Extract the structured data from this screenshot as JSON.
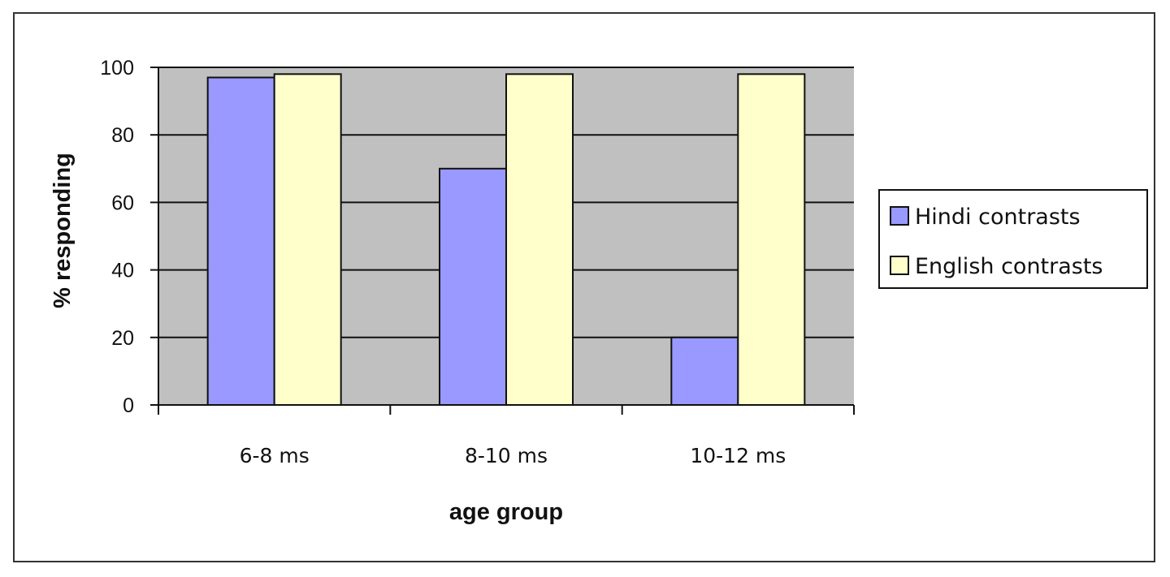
{
  "chart_data": {
    "type": "bar",
    "categories": [
      "6-8 ms",
      "8-10 ms",
      "10-12 ms"
    ],
    "series": [
      {
        "name": "Hindi contrasts",
        "values": [
          97,
          70,
          20
        ],
        "color": "#9999ff"
      },
      {
        "name": "English contrasts",
        "values": [
          98,
          98,
          98
        ],
        "color": "#ffffcc"
      }
    ],
    "xlabel": "age group",
    "ylabel": "% responding",
    "ylim": [
      0,
      100
    ],
    "yticks": [
      0,
      20,
      40,
      60,
      80,
      100
    ],
    "grid": true,
    "plot_background": "#c0c0c0",
    "legend_position": "right"
  }
}
